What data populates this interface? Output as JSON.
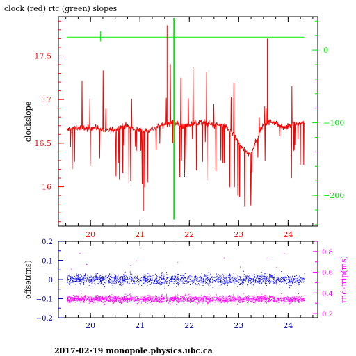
{
  "colors": {
    "red": "#ff0000",
    "green": "#00ee00",
    "blue": "#0000ff",
    "magenta": "#ff00ff",
    "navy": "#0000aa",
    "black": "#000000"
  },
  "footer_text": "2017-02-19  monopole.physics.ubc.ca",
  "chart_data": [
    {
      "type": "line",
      "title": "clock (red) rtc (green) slopes",
      "ylabel": "clockslope",
      "y2label": "",
      "xlim": [
        19.35,
        24.6
      ],
      "ylim": [
        15.55,
        17.95
      ],
      "y2lim": [
        -242,
        46
      ],
      "x_ticks": [
        20,
        21,
        22,
        23,
        24
      ],
      "y_ticks": [
        16,
        16.5,
        17,
        17.5
      ],
      "y2_ticks": [
        -200,
        -100,
        0
      ],
      "series": [
        {
          "name": "clock",
          "axis": "left",
          "color": "#ff0000",
          "x": [
            19.52,
            19.7,
            19.9,
            20.1,
            20.3,
            20.5,
            20.7,
            20.9,
            21.1,
            21.3,
            21.5,
            21.7,
            21.9,
            22.1,
            22.3,
            22.5,
            22.7,
            22.9,
            23.0,
            23.1,
            23.2,
            23.3,
            23.5,
            23.7,
            23.9,
            24.1,
            24.33
          ],
          "y": [
            16.65,
            16.68,
            16.67,
            16.68,
            16.64,
            16.66,
            16.7,
            16.66,
            16.64,
            16.67,
            16.72,
            16.74,
            16.69,
            16.73,
            16.74,
            16.71,
            16.7,
            16.6,
            16.5,
            16.42,
            16.36,
            16.45,
            16.72,
            16.75,
            16.68,
            16.71,
            16.73
          ]
        },
        {
          "name": "rtc",
          "axis": "right",
          "color": "#00ee00",
          "x": [
            19.52,
            20.2,
            21.0,
            21.65,
            22.0,
            23.0,
            24.33
          ],
          "y": [
            18,
            18,
            18,
            18,
            18,
            18,
            18
          ]
        }
      ],
      "spikes": [
        {
          "axis": "left",
          "x": 21.55,
          "y": 17.85
        },
        {
          "axis": "left",
          "x": 23.58,
          "y": 17.7
        },
        {
          "axis": "left",
          "x": 21.07,
          "y": 15.72
        },
        {
          "axis": "right",
          "x": 21.69,
          "y": 44
        },
        {
          "axis": "right",
          "x": 21.69,
          "y": -233
        }
      ]
    },
    {
      "type": "scatter",
      "title": "",
      "ylabel": "offset(ms)",
      "y2label": "rnd-trip(ms)",
      "xlim": [
        19.35,
        24.6
      ],
      "ylim": [
        -0.2,
        0.2
      ],
      "y2lim": [
        0.16,
        0.9
      ],
      "x_ticks": [
        20,
        21,
        22,
        23,
        24
      ],
      "y_ticks": [
        -0.2,
        -0.1,
        0,
        0.1,
        0.2
      ],
      "y_tick_labels": [
        "−0.2",
        "−0.1",
        "0",
        "0.1",
        "0.2"
      ],
      "y2_ticks": [
        0.2,
        0.4,
        0.6,
        0.8
      ],
      "series": [
        {
          "name": "offset",
          "axis": "left",
          "color": "#0000ff",
          "x_range": [
            19.52,
            24.33
          ],
          "center": 0.0,
          "spread": 0.028
        },
        {
          "name": "rnd-trip",
          "axis": "right",
          "color": "#ff00ff",
          "x_range": [
            19.52,
            24.33
          ],
          "center": 0.34,
          "spread": 0.035
        }
      ]
    }
  ]
}
